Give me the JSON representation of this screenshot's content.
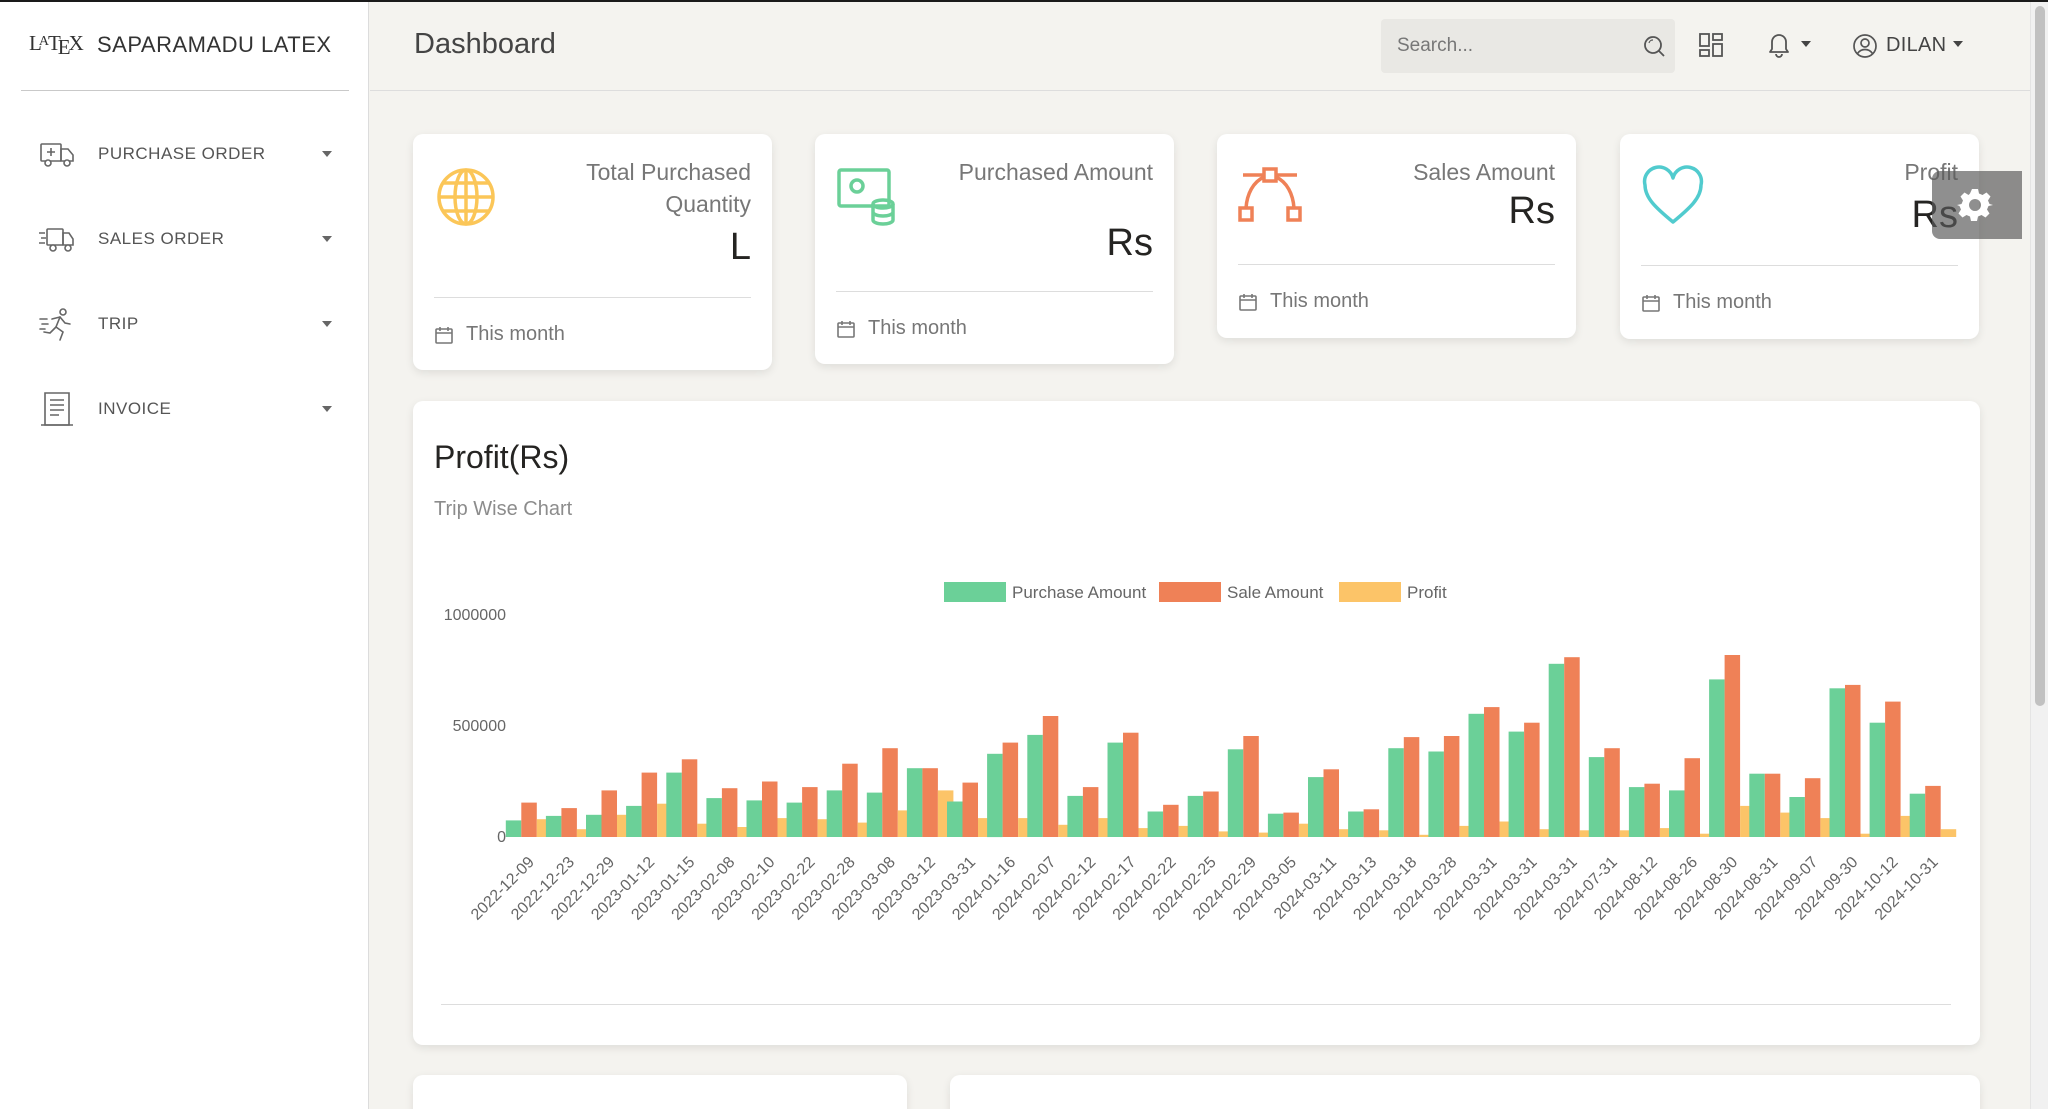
{
  "brand": {
    "logo_text_l": "L",
    "logo_text_a": "A",
    "logo_text_t": "T",
    "logo_text_e": "E",
    "logo_text_x": "X",
    "name": "SAPARAMADU LATEX"
  },
  "sidebar": {
    "items": [
      {
        "label": "PURCHASE ORDER",
        "icon": "delivery-truck-icon"
      },
      {
        "label": "SALES ORDER",
        "icon": "fast-delivery-icon"
      },
      {
        "label": "TRIP",
        "icon": "running-man-icon"
      },
      {
        "label": "INVOICE",
        "icon": "invoice-document-icon"
      }
    ]
  },
  "header": {
    "title": "Dashboard",
    "search_placeholder": "Search...",
    "user_name": "DILAN"
  },
  "stats": [
    {
      "title": "Total Purchased Quantity",
      "value": "L",
      "footer": "This month",
      "icon": "globe-icon",
      "color": "#fbc658"
    },
    {
      "title": "Purchased Amount",
      "value": "Rs",
      "footer": "This month",
      "icon": "money-coins-icon",
      "color": "#6bd098"
    },
    {
      "title": "Sales Amount",
      "value": "Rs",
      "footer": "This month",
      "icon": "vector-curve-icon",
      "color": "#ef8157"
    },
    {
      "title": "Profit",
      "value": "Rs",
      "footer": "This month",
      "icon": "heart-icon",
      "color": "#51cbce"
    }
  ],
  "chart": {
    "title": "Profit(Rs)",
    "subtitle": "Trip Wise Chart"
  },
  "chart_data": {
    "type": "bar",
    "legend_position": "top",
    "grid": false,
    "ylim": [
      0,
      1000000
    ],
    "y_ticks": [
      "0",
      "500000",
      "1000000"
    ],
    "categories": [
      "2022-12-09",
      "2022-12-23",
      "2022-12-29",
      "2023-01-12",
      "2023-01-15",
      "2023-02-08",
      "2023-02-10",
      "2023-02-22",
      "2023-02-28",
      "2023-03-08",
      "2023-03-12",
      "2023-03-31",
      "2024-01-16",
      "2024-02-07",
      "2024-02-12",
      "2024-02-17",
      "2024-02-22",
      "2024-02-25",
      "2024-02-29",
      "2024-03-05",
      "2024-03-11",
      "2024-03-13",
      "2024-03-18",
      "2024-03-28",
      "2024-03-31",
      "2024-03-31",
      "2024-03-31",
      "2024-07-31",
      "2024-08-12",
      "2024-08-26",
      "2024-08-30",
      "2024-08-31",
      "2024-09-07",
      "2024-09-30",
      "2024-10-12",
      "2024-10-31"
    ],
    "series": [
      {
        "name": "Purchase Amount",
        "color": "#6bd098",
        "values": [
          75000,
          95000,
          100000,
          140000,
          290000,
          175000,
          165000,
          155000,
          210000,
          200000,
          310000,
          160000,
          375000,
          460000,
          185000,
          425000,
          115000,
          185000,
          395000,
          105000,
          270000,
          115000,
          400000,
          385000,
          555000,
          475000,
          780000,
          360000,
          225000,
          210000,
          710000,
          285000,
          180000,
          670000,
          515000,
          195000
        ]
      },
      {
        "name": "Sale Amount",
        "color": "#ef8157",
        "values": [
          155000,
          130000,
          210000,
          290000,
          350000,
          220000,
          250000,
          225000,
          330000,
          400000,
          310000,
          245000,
          425000,
          545000,
          225000,
          470000,
          145000,
          205000,
          455000,
          110000,
          305000,
          125000,
          450000,
          455000,
          585000,
          515000,
          810000,
          400000,
          240000,
          355000,
          820000,
          285000,
          265000,
          685000,
          610000,
          230000
        ]
      },
      {
        "name": "Profit",
        "color": "#fcc468",
        "values": [
          80000,
          35000,
          100000,
          150000,
          60000,
          45000,
          85000,
          80000,
          65000,
          120000,
          210000,
          85000,
          85000,
          55000,
          85000,
          40000,
          50000,
          25000,
          20000,
          60000,
          35000,
          30000,
          10000,
          50000,
          70000,
          35000,
          30000,
          30000,
          40000,
          15000,
          140000,
          110000,
          85000,
          15000,
          95000,
          35000
        ]
      }
    ]
  }
}
